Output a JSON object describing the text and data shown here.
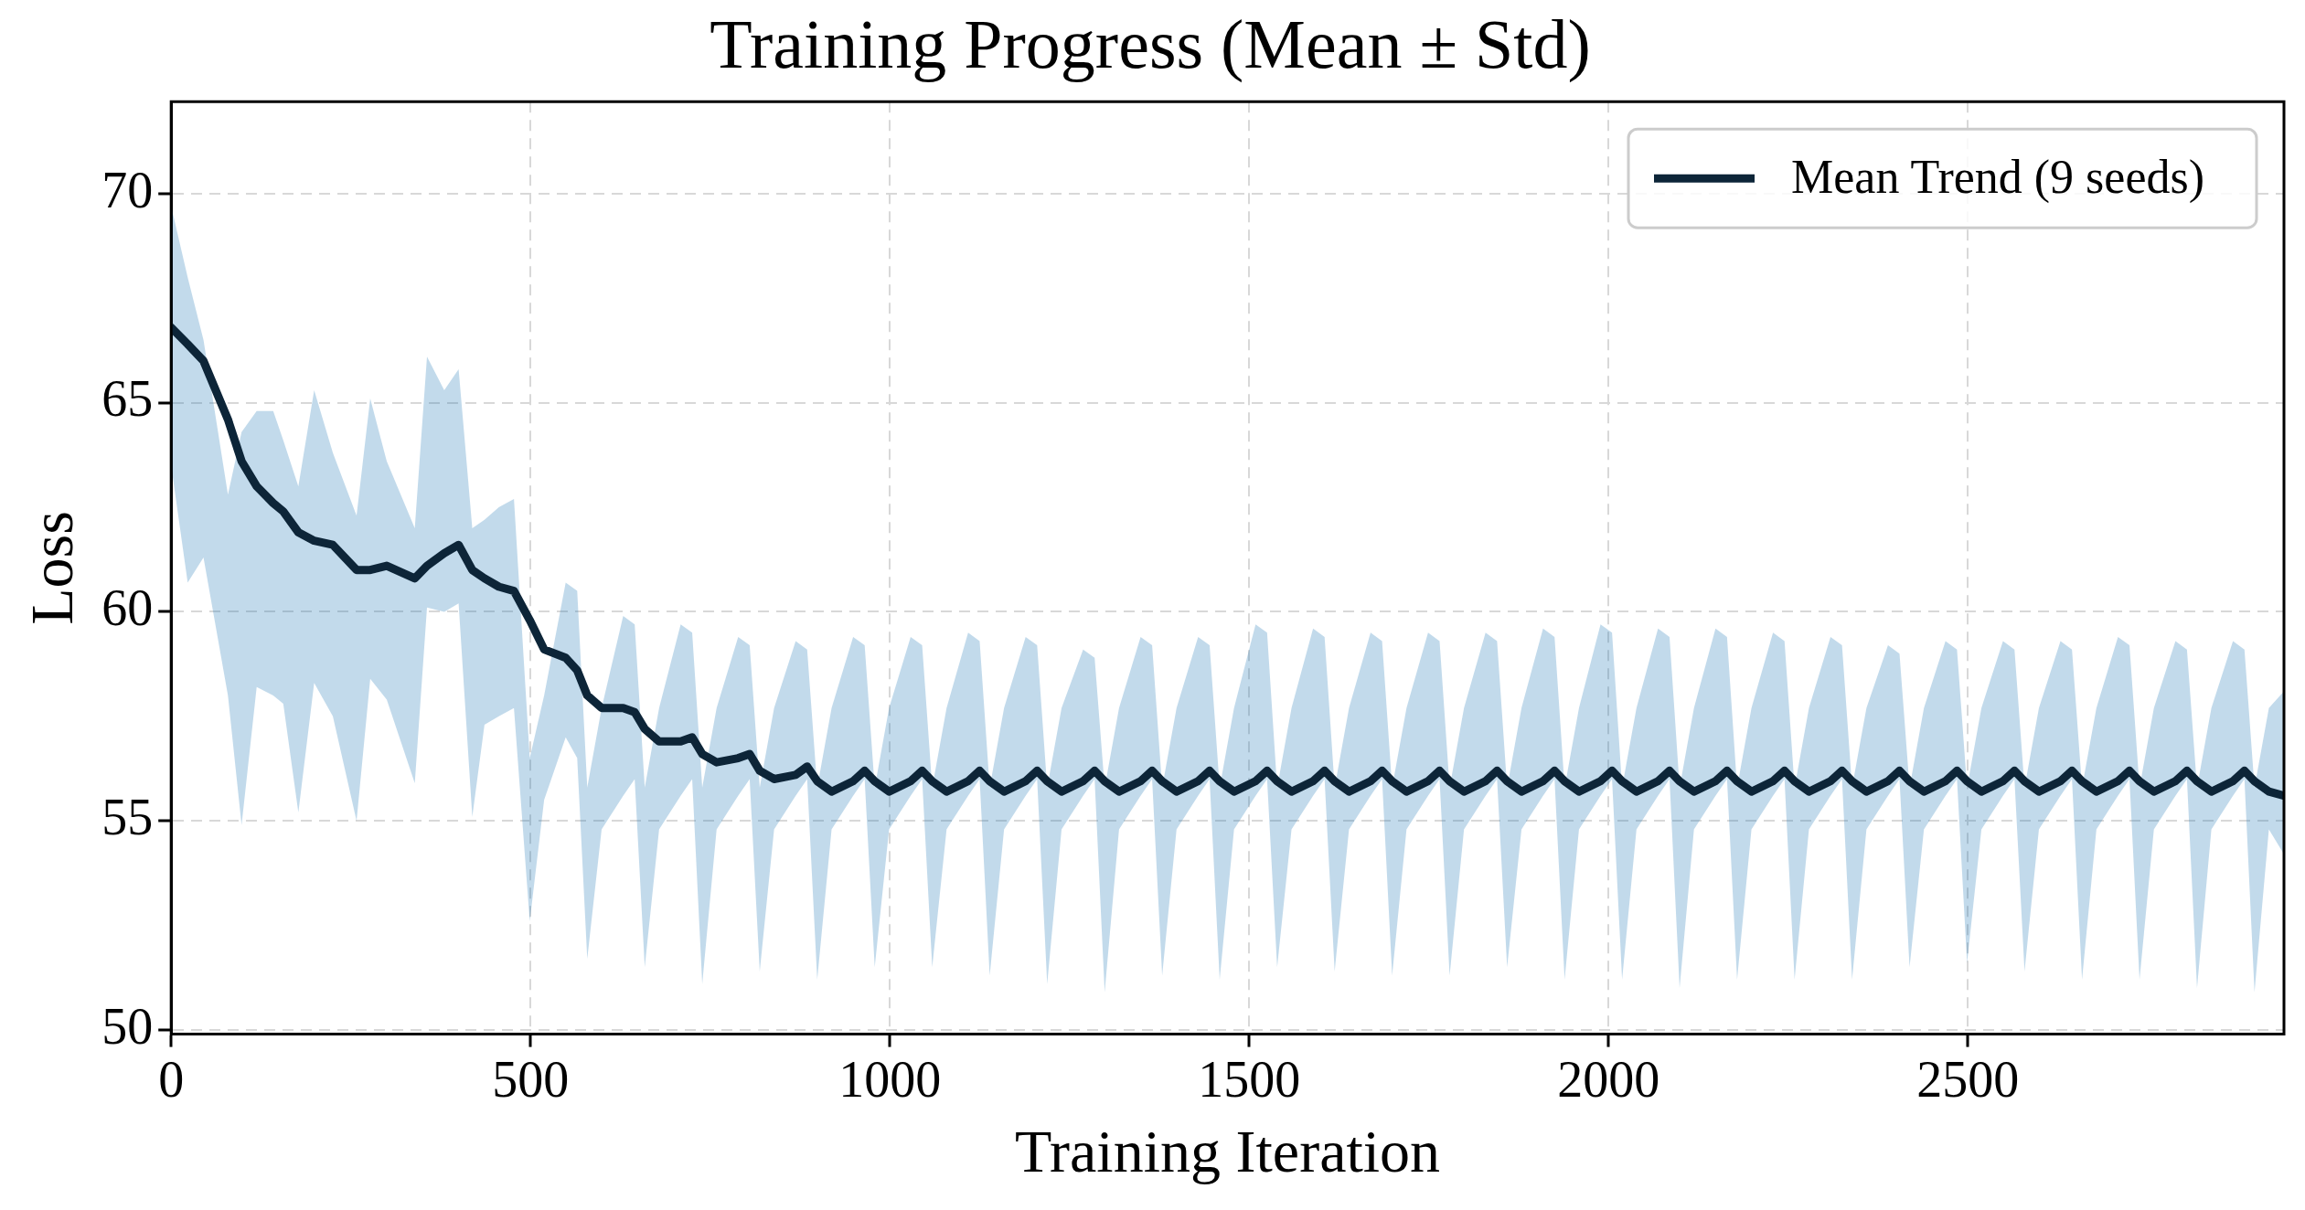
{
  "chart_data": {
    "type": "line",
    "title": "Training Progress (Mean ± Std)",
    "xlabel": "Training Iteration",
    "ylabel": "Loss",
    "xlim": [
      0,
      2940
    ],
    "xticks": [
      0,
      500,
      1000,
      1500,
      2000,
      2500
    ],
    "ylim": [
      49.9,
      72.2
    ],
    "yticks": [
      50,
      55,
      60,
      65,
      70
    ],
    "grid": true,
    "legend": "top right",
    "marker": "none",
    "line_style": "solid",
    "series": [
      {
        "name": "Mean Trend (9 seeds)",
        "color": "#0d2538",
        "x": [
          0,
          23,
          45,
          79,
          98,
          119,
          142,
          156,
          177,
          199,
          225,
          258,
          277,
          300,
          339,
          356,
          380,
          400,
          419,
          436,
          456,
          477,
          499,
          519,
          549,
          565,
          579,
          599,
          629,
          645,
          659,
          679,
          709,
          725,
          739,
          759,
          789,
          805,
          819,
          839,
          869,
          885,
          899,
          919,
          949,
          965,
          979,
          999,
          1029,
          1045,
          1059,
          1079,
          1109,
          1125,
          1139,
          1159,
          1189,
          1205,
          1219,
          1239,
          1269,
          1285,
          1299,
          1319,
          1349,
          1365,
          1379,
          1399,
          1429,
          1445,
          1459,
          1479,
          1509,
          1525,
          1539,
          1559,
          1589,
          1605,
          1619,
          1639,
          1669,
          1685,
          1699,
          1719,
          1749,
          1765,
          1779,
          1799,
          1829,
          1845,
          1859,
          1879,
          1909,
          1925,
          1939,
          1959,
          1989,
          2005,
          2019,
          2039,
          2069,
          2085,
          2099,
          2119,
          2149,
          2165,
          2179,
          2199,
          2229,
          2245,
          2259,
          2279,
          2309,
          2325,
          2339,
          2359,
          2389,
          2405,
          2419,
          2439,
          2469,
          2485,
          2499,
          2519,
          2549,
          2565,
          2579,
          2599,
          2629,
          2645,
          2659,
          2679,
          2709,
          2725,
          2739,
          2759,
          2789,
          2805,
          2819,
          2839,
          2869,
          2885,
          2899,
          2919,
          2940
        ],
        "values": [
          66.8,
          66.4,
          66.0,
          64.6,
          63.6,
          63.0,
          62.6,
          62.4,
          61.9,
          61.7,
          61.6,
          61.0,
          61.0,
          61.1,
          60.8,
          61.1,
          61.4,
          61.6,
          61.0,
          60.8,
          60.6,
          60.5,
          59.8,
          59.1,
          58.9,
          58.6,
          58.0,
          57.7,
          57.7,
          57.6,
          57.2,
          56.9,
          56.9,
          57.0,
          56.6,
          56.4,
          56.5,
          56.6,
          56.2,
          56.0,
          56.1,
          56.3,
          55.95,
          55.7,
          55.95,
          56.2,
          55.95,
          55.7,
          55.95,
          56.2,
          55.95,
          55.7,
          55.95,
          56.2,
          55.95,
          55.7,
          55.95,
          56.2,
          55.95,
          55.7,
          55.95,
          56.2,
          55.95,
          55.7,
          55.95,
          56.2,
          55.95,
          55.7,
          55.95,
          56.2,
          55.95,
          55.7,
          55.95,
          56.2,
          55.95,
          55.7,
          55.95,
          56.2,
          55.95,
          55.7,
          55.95,
          56.2,
          55.95,
          55.7,
          55.95,
          56.2,
          55.95,
          55.7,
          55.95,
          56.2,
          55.95,
          55.7,
          55.95,
          56.2,
          55.95,
          55.7,
          55.95,
          56.2,
          55.95,
          55.7,
          55.95,
          56.2,
          55.95,
          55.7,
          55.95,
          56.2,
          55.95,
          55.7,
          55.95,
          56.2,
          55.95,
          55.7,
          55.95,
          56.2,
          55.95,
          55.7,
          55.95,
          56.2,
          55.95,
          55.7,
          55.95,
          56.2,
          55.95,
          55.7,
          55.95,
          56.2,
          55.95,
          55.7,
          55.95,
          56.2,
          55.95,
          55.7,
          55.95,
          56.2,
          55.95,
          55.7,
          55.95,
          56.2,
          55.95,
          55.7,
          55.95,
          56.2,
          55.95,
          55.7,
          55.6
        ],
        "upper": [
          69.7,
          68.0,
          66.5,
          62.8,
          64.3,
          64.8,
          64.8,
          64.1,
          63.0,
          65.3,
          63.8,
          62.3,
          65.1,
          63.6,
          62.0,
          66.1,
          65.3,
          65.8,
          62.0,
          62.2,
          62.5,
          62.7,
          56.5,
          58.0,
          60.7,
          60.5,
          55.8,
          57.7,
          59.9,
          59.7,
          55.8,
          57.7,
          59.7,
          59.5,
          55.8,
          57.7,
          59.4,
          59.2,
          55.8,
          57.7,
          59.3,
          59.1,
          55.8,
          57.7,
          59.4,
          59.2,
          55.8,
          57.7,
          59.4,
          59.2,
          55.8,
          57.7,
          59.5,
          59.3,
          55.8,
          57.7,
          59.4,
          59.2,
          55.8,
          57.7,
          59.1,
          58.9,
          55.8,
          57.7,
          59.4,
          59.2,
          55.8,
          57.7,
          59.4,
          59.2,
          55.8,
          57.7,
          59.7,
          59.5,
          55.8,
          57.7,
          59.6,
          59.4,
          55.8,
          57.7,
          59.5,
          59.3,
          55.8,
          57.7,
          59.5,
          59.3,
          55.8,
          57.7,
          59.5,
          59.3,
          55.8,
          57.7,
          59.6,
          59.4,
          55.8,
          57.7,
          59.7,
          59.5,
          55.8,
          57.7,
          59.6,
          59.4,
          55.8,
          57.7,
          59.6,
          59.4,
          55.8,
          57.7,
          59.5,
          59.3,
          55.8,
          57.7,
          59.4,
          59.2,
          55.8,
          57.7,
          59.2,
          59.0,
          55.8,
          57.7,
          59.3,
          59.1,
          55.8,
          57.7,
          59.3,
          59.1,
          55.8,
          57.7,
          59.3,
          59.1,
          55.8,
          57.7,
          59.4,
          59.2,
          55.8,
          57.7,
          59.3,
          59.1,
          55.8,
          57.7,
          59.3,
          59.1,
          55.8,
          57.7,
          58.1
        ],
        "lower": [
          63.5,
          60.7,
          61.3,
          58.0,
          54.9,
          58.2,
          58.0,
          57.8,
          55.2,
          58.3,
          57.5,
          55.0,
          58.4,
          57.9,
          55.9,
          60.1,
          60.0,
          60.2,
          55.1,
          57.3,
          57.5,
          57.7,
          52.6,
          55.5,
          57.0,
          56.5,
          51.7,
          54.8,
          55.6,
          56.0,
          51.5,
          54.8,
          55.6,
          56.0,
          51.1,
          54.8,
          55.6,
          56.0,
          51.4,
          54.8,
          55.6,
          56.0,
          51.2,
          54.8,
          55.6,
          56.0,
          51.5,
          54.8,
          55.6,
          56.0,
          51.5,
          54.8,
          55.6,
          56.0,
          51.3,
          54.8,
          55.6,
          56.0,
          51.1,
          54.8,
          55.6,
          56.0,
          50.9,
          54.8,
          55.6,
          56.0,
          51.3,
          54.8,
          55.6,
          56.0,
          51.2,
          54.8,
          55.6,
          56.0,
          51.5,
          54.8,
          55.6,
          56.0,
          51.4,
          54.8,
          55.6,
          56.0,
          51.3,
          54.8,
          55.6,
          56.0,
          51.3,
          54.8,
          55.6,
          56.0,
          51.5,
          54.8,
          55.6,
          56.0,
          51.2,
          54.8,
          55.6,
          56.0,
          51.2,
          54.8,
          55.6,
          56.0,
          51.0,
          54.8,
          55.6,
          56.0,
          51.2,
          54.8,
          55.6,
          56.0,
          51.2,
          54.8,
          55.6,
          56.0,
          51.2,
          54.8,
          55.6,
          56.0,
          51.5,
          54.8,
          55.6,
          56.0,
          51.6,
          54.8,
          55.6,
          56.0,
          51.4,
          54.8,
          55.6,
          56.0,
          51.2,
          54.8,
          55.6,
          56.0,
          51.2,
          54.8,
          55.6,
          56.0,
          51.0,
          54.8,
          55.6,
          56.0,
          50.9,
          54.8,
          54.2
        ]
      }
    ]
  }
}
